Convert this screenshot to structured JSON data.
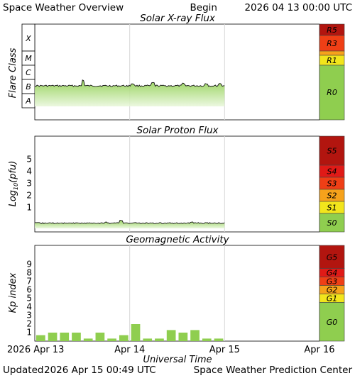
{
  "header": {
    "title": "Space Weather Overview",
    "begin_label": "Begin",
    "begin_date": "2026 04 13 00:00 UTC"
  },
  "footer": {
    "updated_label": "Updated",
    "updated_date": "2026 Apr 15 00:49 UTC",
    "center": "Space Weather Prediction Center"
  },
  "time_axis": {
    "label": "Universal Time",
    "ticks": [
      "2026 Apr 13",
      "Apr 14",
      "Apr 15",
      "Apr 16"
    ]
  },
  "colors": {
    "green": "#8fce4f",
    "yellow": "#f2e51c",
    "orange": "#f6a21b",
    "red_orange": "#ef3f16",
    "red": "#e01a17",
    "dark_red": "#b2150f",
    "grid": "#d8d8d8",
    "line_fill_light": "#e6f6d6",
    "line_fill_dark": "#8fce4f"
  },
  "chart_data": [
    {
      "type": "area",
      "title": "Solar X-ray Flux",
      "ylabel": "Flare Class",
      "y_classes": [
        "X",
        "M",
        "C",
        "B",
        "A"
      ],
      "x_unit": "days since 2026 Apr 13 00:00 UTC",
      "xlim": [
        0,
        3
      ],
      "data_end_x": 2.0,
      "level_summary": "approximately B1-B2 class throughout, small bumps near B3",
      "scale_levels": [
        {
          "label": "R5",
          "color": "#b2150f"
        },
        {
          "label": "R3",
          "color": "#ef3f16"
        },
        {
          "label": "R1",
          "color": "#f2e51c"
        },
        {
          "label": "R0",
          "color": "#8fce4f"
        }
      ]
    },
    {
      "type": "area",
      "title": "Solar Proton Flux",
      "ylabel": "Log10(pfu)",
      "ylabel_main": "Log",
      "ylabel_sub": "10",
      "ylabel_rest": "(pfu)",
      "y_ticks": [
        "1",
        "2",
        "3",
        "4",
        "5"
      ],
      "xlim": [
        0,
        3
      ],
      "data_end_x": 2.0,
      "level_summary": "approximately log10 = -0.3 (background) throughout",
      "scale_levels": [
        {
          "label": "S5",
          "color": "#b2150f"
        },
        {
          "label": "S4",
          "color": "#e01a17"
        },
        {
          "label": "S3",
          "color": "#ef3f16"
        },
        {
          "label": "S2",
          "color": "#f6a21b"
        },
        {
          "label": "S1",
          "color": "#f2e51c"
        },
        {
          "label": "S0",
          "color": "#8fce4f"
        }
      ]
    },
    {
      "type": "bar",
      "title": "Geomagnetic Activity",
      "ylabel": "Kp index",
      "y_ticks": [
        "1",
        "2",
        "3",
        "4",
        "5",
        "6",
        "7",
        "8",
        "9"
      ],
      "xlim": [
        0,
        3
      ],
      "bar_width_days": 0.125,
      "bars": [
        {
          "x": 0.0,
          "kp": 0.7
        },
        {
          "x": 0.125,
          "kp": 1.0
        },
        {
          "x": 0.25,
          "kp": 1.0
        },
        {
          "x": 0.375,
          "kp": 1.0
        },
        {
          "x": 0.5,
          "kp": 0.3
        },
        {
          "x": 0.625,
          "kp": 1.0
        },
        {
          "x": 0.75,
          "kp": 0.3
        },
        {
          "x": 0.875,
          "kp": 0.7
        },
        {
          "x": 1.0,
          "kp": 2.0
        },
        {
          "x": 1.125,
          "kp": 0.3
        },
        {
          "x": 1.25,
          "kp": 0.3
        },
        {
          "x": 1.375,
          "kp": 1.3
        },
        {
          "x": 1.5,
          "kp": 1.0
        },
        {
          "x": 1.625,
          "kp": 1.3
        },
        {
          "x": 1.75,
          "kp": 0.3
        },
        {
          "x": 1.875,
          "kp": 0.3
        }
      ],
      "scale_levels": [
        {
          "label": "G5",
          "color": "#b2150f"
        },
        {
          "label": "G4",
          "color": "#e01a17"
        },
        {
          "label": "G3",
          "color": "#ef3f16"
        },
        {
          "label": "G2",
          "color": "#f6a21b"
        },
        {
          "label": "G1",
          "color": "#f2e51c"
        },
        {
          "label": "G0",
          "color": "#8fce4f"
        }
      ]
    }
  ]
}
